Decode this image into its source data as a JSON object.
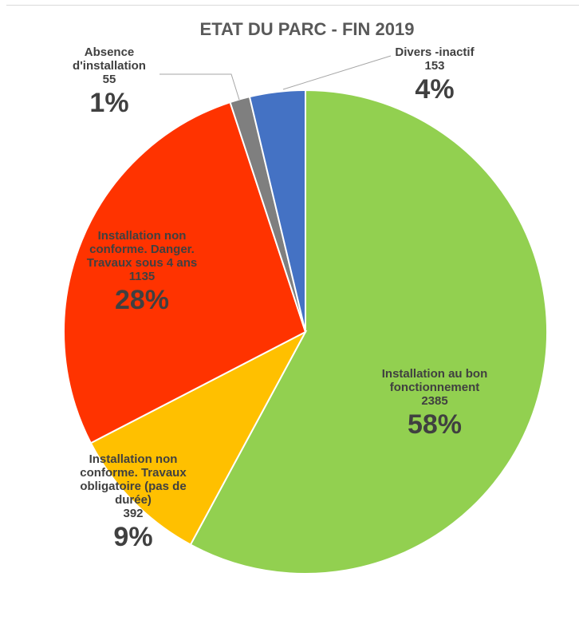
{
  "chart_data": {
    "type": "pie",
    "title": "ETAT DU PARC - FIN 2019",
    "slices": [
      {
        "label_lines": [
          "Installation au bon",
          "fonctionnement"
        ],
        "value": 2385,
        "percent_label": "58%",
        "color": "#92d050"
      },
      {
        "label_lines": [
          "Installation non",
          "conforme. Travaux",
          "obligatoire (pas de",
          "durée)"
        ],
        "value": 392,
        "percent_label": "9%",
        "color": "#ffc000"
      },
      {
        "label_lines": [
          "Installation non",
          "conforme. Danger.",
          "Travaux sous 4 ans"
        ],
        "value": 1135,
        "percent_label": "28%",
        "color": "#ff3300"
      },
      {
        "label_lines": [
          "Absence",
          "d'installation"
        ],
        "value": 55,
        "percent_label": "1%",
        "color": "#7f7f7f"
      },
      {
        "label_lines": [
          "Divers -inactif"
        ],
        "value": 153,
        "percent_label": "4%",
        "color": "#4472c4"
      }
    ],
    "start": "12 o'clock",
    "direction": "clockwise",
    "slice_border_color": "#ffffff",
    "leader_line_color": "#a6a6a6",
    "legend": "none"
  }
}
